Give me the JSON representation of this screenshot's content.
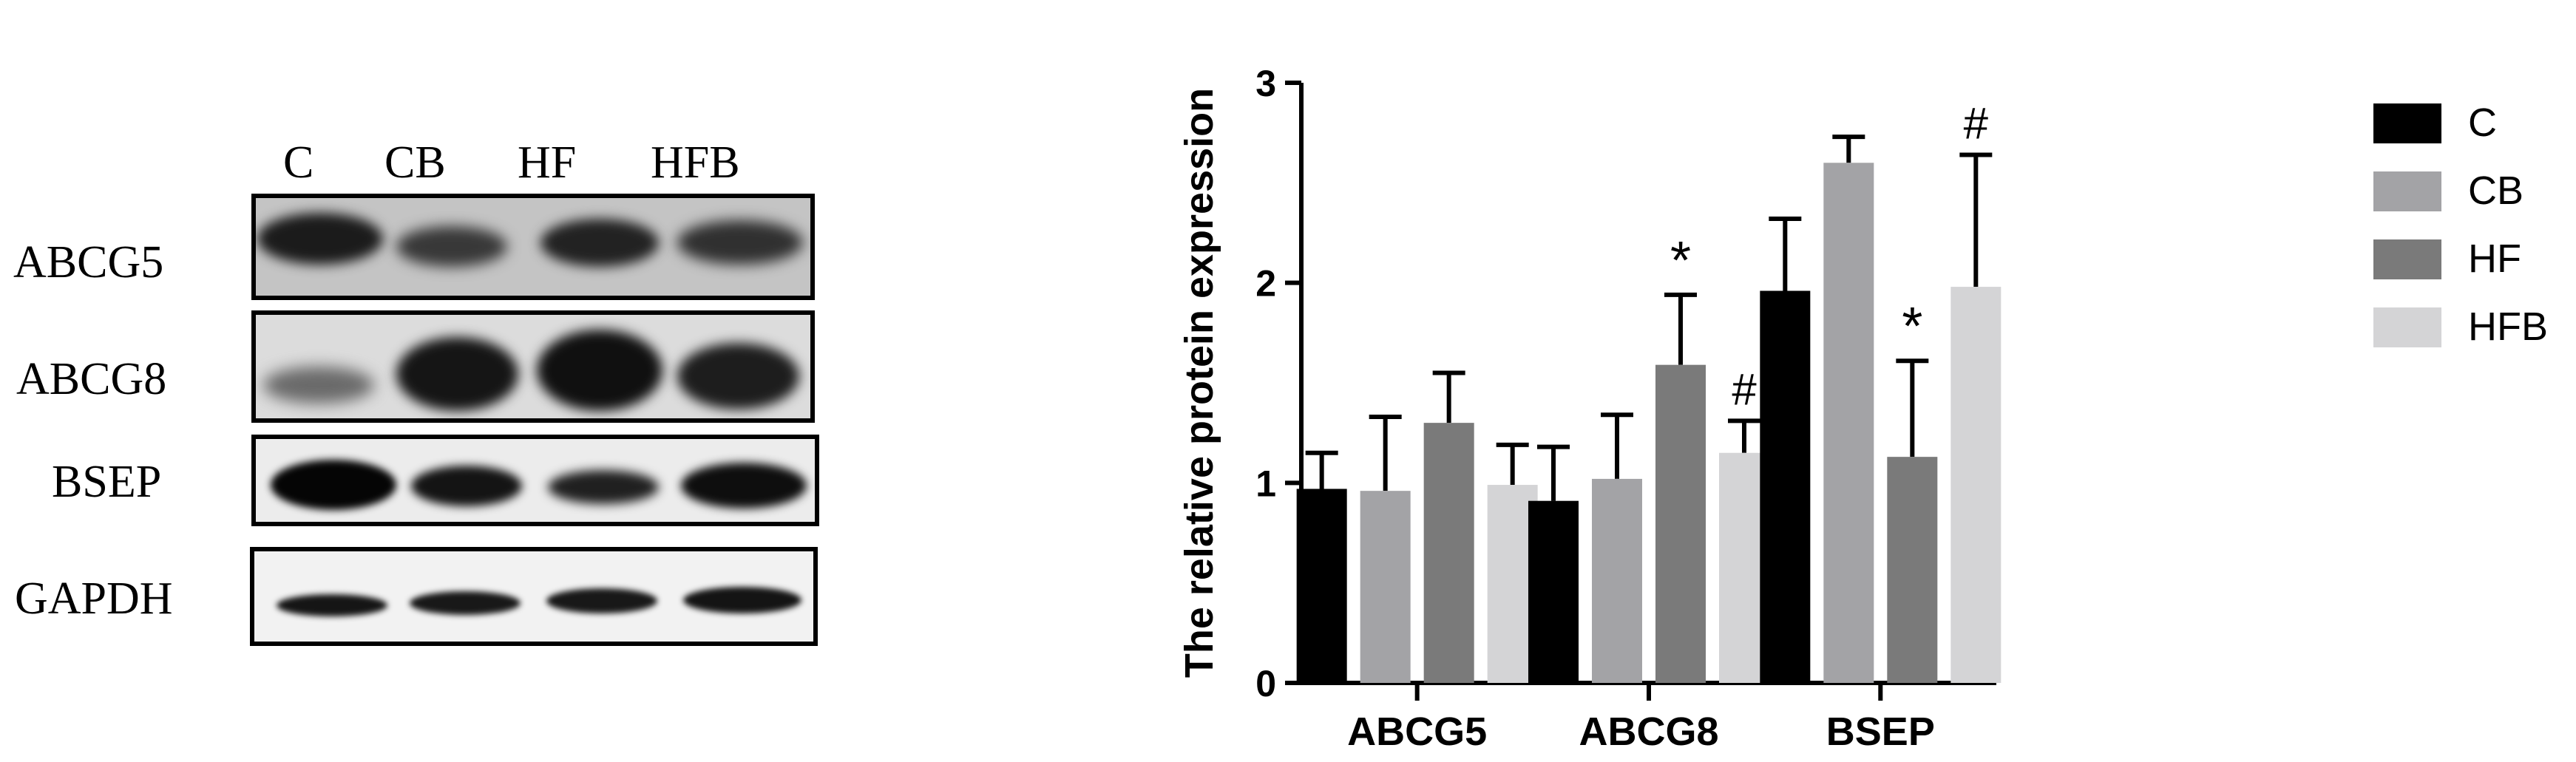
{
  "blot": {
    "lanes": [
      "C",
      "CB",
      "HF",
      "HFB"
    ],
    "rows": [
      "ABCG5",
      "ABCG8",
      "BSEP",
      "GAPDH"
    ]
  },
  "chart_data": {
    "type": "bar",
    "ylabel": "The relative protein expression",
    "xlabel": "",
    "ylim": [
      0,
      3
    ],
    "yticks": [
      0,
      1,
      2,
      3
    ],
    "categories": [
      "ABCG5",
      "ABCG8",
      "BSEP"
    ],
    "legend_position": "right",
    "series": [
      {
        "name": "C",
        "color": "#000000",
        "values": [
          0.97,
          0.91,
          1.96
        ],
        "errors": [
          0.18,
          0.27,
          0.36
        ],
        "markers": [
          "",
          "",
          ""
        ]
      },
      {
        "name": "CB",
        "color": "#a3a3a6",
        "values": [
          0.96,
          1.02,
          2.6
        ],
        "errors": [
          0.37,
          0.32,
          0.13
        ],
        "markers": [
          "",
          "",
          ""
        ]
      },
      {
        "name": "HF",
        "color": "#7a7a7a",
        "values": [
          1.3,
          1.59,
          1.13
        ],
        "errors": [
          0.25,
          0.35,
          0.48
        ],
        "markers": [
          "",
          "*",
          "*"
        ]
      },
      {
        "name": "HFB",
        "color": "#d4d4d6",
        "values": [
          0.99,
          1.15,
          1.98
        ],
        "errors": [
          0.2,
          0.16,
          0.66
        ],
        "markers": [
          "",
          "#",
          "#"
        ]
      }
    ]
  }
}
